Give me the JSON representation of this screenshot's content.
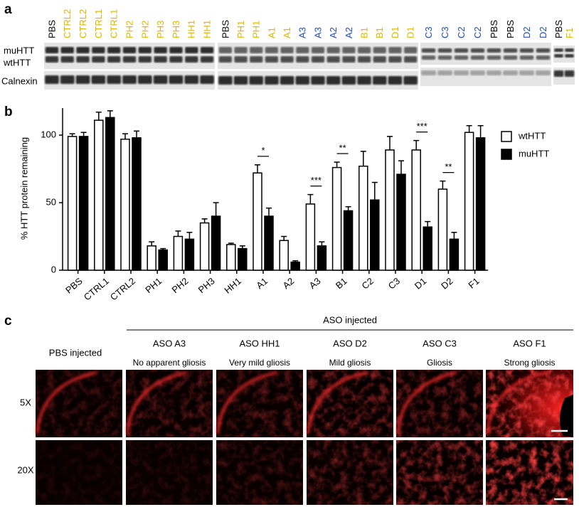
{
  "panel_a": {
    "label": "a",
    "row_labels": [
      "muHTT",
      "wtHTT",
      "Calnexin"
    ],
    "blots": [
      {
        "lanes": [
          {
            "text": "PBS",
            "color": "#000000"
          },
          {
            "text": "CTRL2",
            "color": "#e0b400"
          },
          {
            "text": "CTRL2",
            "color": "#e0b400"
          },
          {
            "text": "CTRL1",
            "color": "#e0b400"
          },
          {
            "text": "CTRL1",
            "color": "#e0b400"
          },
          {
            "text": "PH2",
            "color": "#e0b400"
          },
          {
            "text": "PH2",
            "color": "#e0b400"
          },
          {
            "text": "PH3",
            "color": "#e0b400"
          },
          {
            "text": "PH3",
            "color": "#e0b400"
          },
          {
            "text": "HH1",
            "color": "#e0b400"
          },
          {
            "text": "HH1",
            "color": "#e0b400"
          }
        ]
      },
      {
        "lanes": [
          {
            "text": "PBS",
            "color": "#000000"
          },
          {
            "text": "PH1",
            "color": "#e0b400"
          },
          {
            "text": "PH1",
            "color": "#e0b400"
          },
          {
            "text": "A1",
            "color": "#e0b400"
          },
          {
            "text": "A1",
            "color": "#e0b400"
          },
          {
            "text": "A3",
            "color": "#1f4fb5"
          },
          {
            "text": "A3",
            "color": "#1f4fb5"
          },
          {
            "text": "A2",
            "color": "#1f4fb5"
          },
          {
            "text": "A2",
            "color": "#1f4fb5"
          },
          {
            "text": "B1",
            "color": "#e0b400"
          },
          {
            "text": "B1",
            "color": "#e0b400"
          },
          {
            "text": "D1",
            "color": "#e0b400"
          },
          {
            "text": "D1",
            "color": "#e0b400"
          }
        ]
      },
      {
        "lanes": [
          {
            "text": "C3",
            "color": "#1f4fb5"
          },
          {
            "text": "C3",
            "color": "#1f4fb5"
          },
          {
            "text": "C2",
            "color": "#1f4fb5"
          },
          {
            "text": "C2",
            "color": "#1f4fb5"
          },
          {
            "text": "PBS",
            "color": "#000000"
          },
          {
            "text": "PBS",
            "color": "#000000"
          },
          {
            "text": "D2",
            "color": "#1f4fb5"
          },
          {
            "text": "D2",
            "color": "#1f4fb5"
          }
        ]
      },
      {
        "lanes": [
          {
            "text": "PBS",
            "color": "#000000"
          },
          {
            "text": "F1",
            "color": "#e0b400"
          }
        ]
      }
    ]
  },
  "chart_data": {
    "type": "bar",
    "panel_label": "b",
    "y_label": "% HTT protein remaining",
    "categories": [
      "PBS",
      "CTRL1",
      "CTRL2",
      "PH1",
      "PH2",
      "PH3",
      "HH1",
      "A1",
      "A2",
      "A3",
      "B1",
      "C2",
      "C3",
      "D1",
      "D2",
      "F1"
    ],
    "series": [
      {
        "name": "wtHTT",
        "color": "#ffffff",
        "values": [
          99,
          111,
          97,
          18,
          25,
          35,
          19,
          72,
          22,
          49,
          76,
          77,
          89,
          89,
          60,
          102
        ],
        "errors": [
          2,
          6,
          4,
          3,
          4,
          3,
          1,
          6,
          3,
          7,
          4,
          11,
          10,
          7,
          6,
          5
        ]
      },
      {
        "name": "muHTT",
        "color": "#000000",
        "values": [
          99,
          113,
          98,
          15,
          23,
          40,
          16,
          40,
          6,
          18,
          44,
          52,
          71,
          32,
          23,
          98
        ],
        "errors": [
          3,
          5,
          5,
          1,
          5,
          10,
          2,
          6,
          1,
          3,
          3,
          13,
          10,
          4,
          5,
          9
        ]
      }
    ],
    "ylim": [
      0,
      120
    ],
    "yticks": [
      0,
      50,
      100
    ],
    "legend": "upper right",
    "annotations": [
      {
        "category": "A1",
        "label": "*"
      },
      {
        "category": "A3",
        "label": "***"
      },
      {
        "category": "B1",
        "label": "**"
      },
      {
        "category": "D1",
        "label": "***"
      },
      {
        "category": "D2",
        "label": "**"
      }
    ]
  },
  "panel_c": {
    "label": "c",
    "group_label": "ASO injected",
    "control_label": "PBS injected",
    "columns": [
      {
        "title": "ASO A3",
        "subtitle": "No apparent gliosis"
      },
      {
        "title": "ASO HH1",
        "subtitle": "Very mild gliosis"
      },
      {
        "title": "ASO D2",
        "subtitle": "Mild gliosis"
      },
      {
        "title": "ASO C3",
        "subtitle": "Gliosis"
      },
      {
        "title": "ASO F1",
        "subtitle": "Strong gliosis"
      }
    ],
    "row_labels": [
      "5X",
      "20X"
    ]
  }
}
